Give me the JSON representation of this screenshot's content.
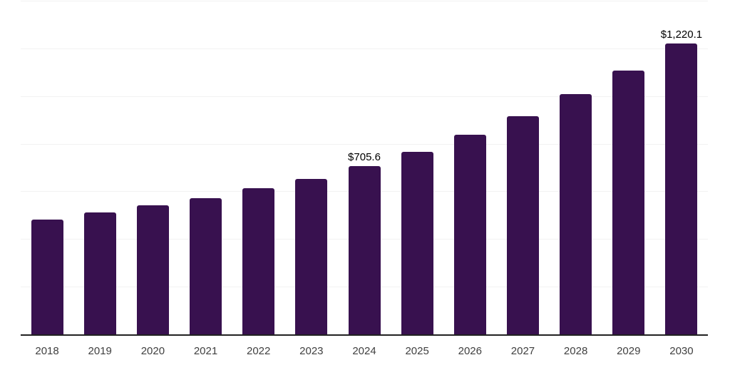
{
  "chart_data": {
    "type": "bar",
    "title": "",
    "xlabel": "",
    "ylabel": "",
    "categories": [
      "2018",
      "2019",
      "2020",
      "2021",
      "2022",
      "2023",
      "2024",
      "2025",
      "2026",
      "2027",
      "2028",
      "2029",
      "2030"
    ],
    "values": [
      481.6,
      511.5,
      541.4,
      571.3,
      613.2,
      652.1,
      705.6,
      765.9,
      837.7,
      915.5,
      1008.2,
      1106.9,
      1220.1
    ],
    "data_labels": {
      "6": "$705.6",
      "12": "$1,220.1"
    },
    "ylim": [
      0,
      1400
    ],
    "grid_step": 200,
    "grid": true,
    "legend": "none",
    "y_axis_labels_visible": false,
    "colors": {
      "bar": "#38114F",
      "axis_line": "#212121",
      "gridline": "#F2F2F2",
      "tick_label": "#404040",
      "data_label": "#000000",
      "background": "#FFFFFF"
    }
  }
}
